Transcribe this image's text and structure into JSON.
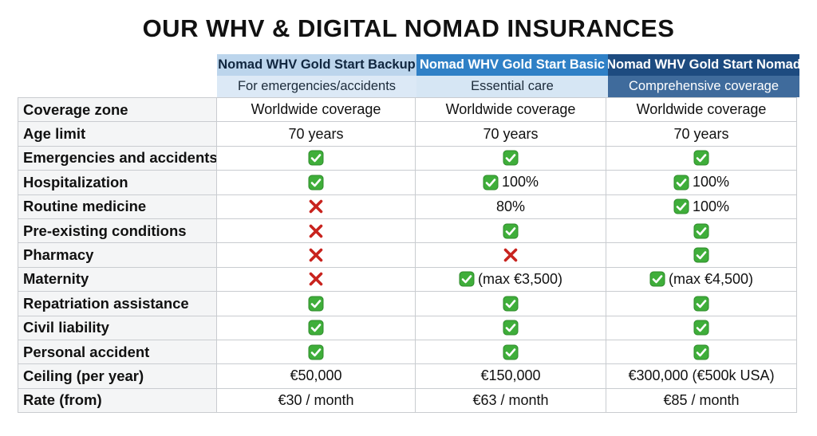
{
  "title": "OUR WHV & DIGITAL NOMAD INSURANCES",
  "table": {
    "columns": [
      {
        "name": "Nomad WHV Gold Start Backup",
        "subtitle": "For emergencies/accidents"
      },
      {
        "name": "Nomad WHV Gold Start Basic",
        "subtitle": "Essential care"
      },
      {
        "name": "Nomad WHV Gold Start Nomad",
        "subtitle": "Comprehensive coverage"
      }
    ],
    "rows": [
      {
        "label": "Coverage zone",
        "cells": [
          {
            "text": "Worldwide coverage"
          },
          {
            "text": "Worldwide coverage"
          },
          {
            "text": "Worldwide coverage"
          }
        ]
      },
      {
        "label": "Age limit",
        "cells": [
          {
            "text": "70 years"
          },
          {
            "text": "70 years"
          },
          {
            "text": "70 years"
          }
        ]
      },
      {
        "label": "Emergencies and accidents",
        "cells": [
          {
            "icon": "check"
          },
          {
            "icon": "check"
          },
          {
            "icon": "check"
          }
        ]
      },
      {
        "label": "Hospitalization",
        "cells": [
          {
            "icon": "check"
          },
          {
            "icon": "check",
            "text": "100%"
          },
          {
            "icon": "check",
            "text": "100%"
          }
        ]
      },
      {
        "label": "Routine medicine",
        "cells": [
          {
            "icon": "cross"
          },
          {
            "text": "80%"
          },
          {
            "icon": "check",
            "text": "100%"
          }
        ]
      },
      {
        "label": "Pre-existing conditions",
        "cells": [
          {
            "icon": "cross"
          },
          {
            "icon": "check"
          },
          {
            "icon": "check"
          }
        ]
      },
      {
        "label": "Pharmacy",
        "cells": [
          {
            "icon": "cross"
          },
          {
            "icon": "cross"
          },
          {
            "icon": "check"
          }
        ]
      },
      {
        "label": "Maternity",
        "cells": [
          {
            "icon": "cross"
          },
          {
            "icon": "check",
            "text": "(max €3,500)"
          },
          {
            "icon": "check",
            "text": "(max €4,500)"
          }
        ]
      },
      {
        "label": "Repatriation assistance",
        "cells": [
          {
            "icon": "check"
          },
          {
            "icon": "check"
          },
          {
            "icon": "check"
          }
        ]
      },
      {
        "label": "Civil liability",
        "cells": [
          {
            "icon": "check"
          },
          {
            "icon": "check"
          },
          {
            "icon": "check"
          }
        ]
      },
      {
        "label": "Personal accident",
        "cells": [
          {
            "icon": "check"
          },
          {
            "icon": "check"
          },
          {
            "icon": "check"
          }
        ]
      },
      {
        "label": "Ceiling (per year)",
        "cells": [
          {
            "text": "€50,000"
          },
          {
            "text": "€150,000"
          },
          {
            "text": "€300,000 (€500k USA)"
          }
        ]
      },
      {
        "label": "Rate (from)",
        "cells": [
          {
            "text": "€30 / month"
          },
          {
            "text": "€63 / month"
          },
          {
            "text": "€85 / month"
          }
        ]
      }
    ]
  }
}
